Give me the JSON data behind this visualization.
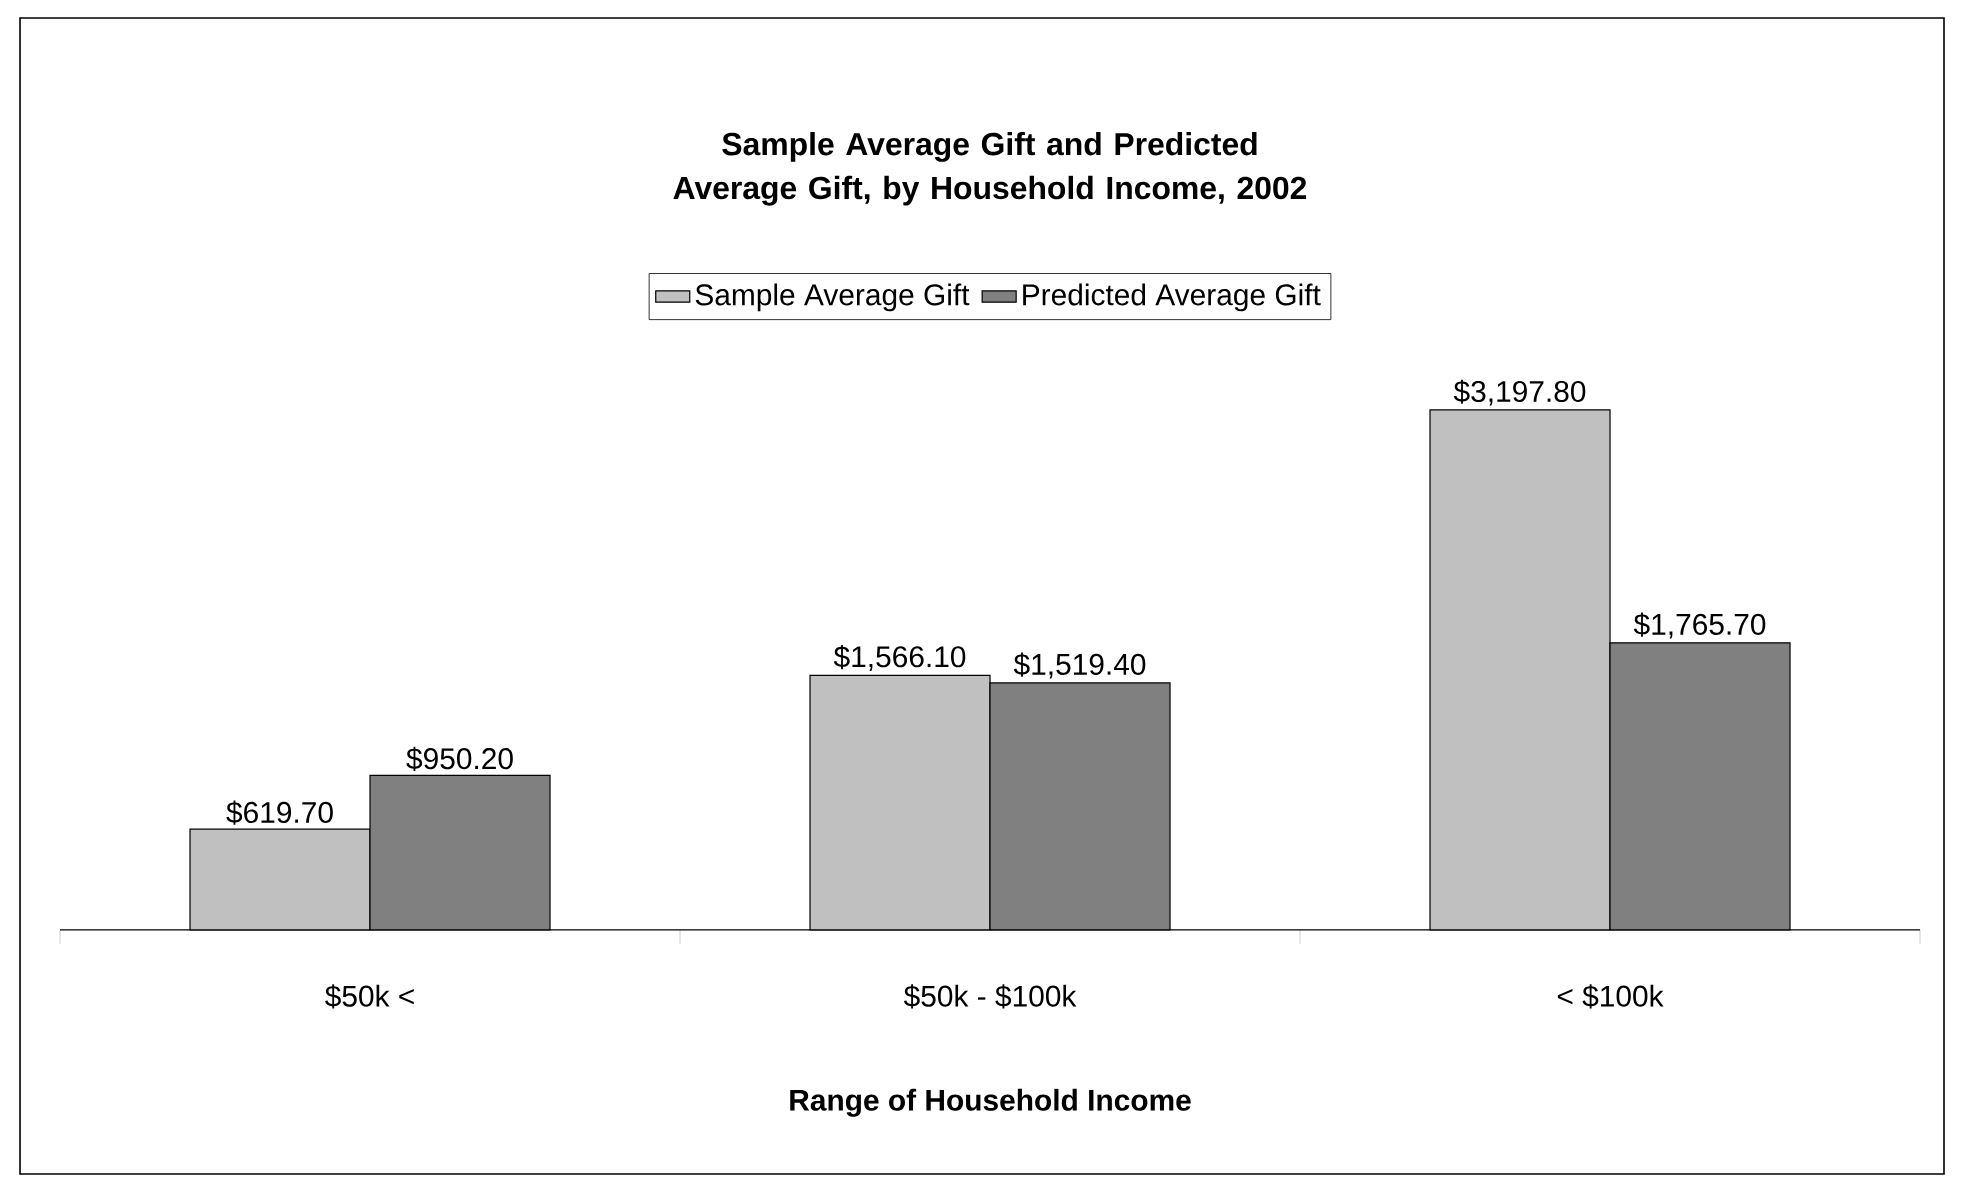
{
  "chart_data": {
    "type": "bar",
    "title": "Sample Average Gift and Predicted Average Gift, by Household Income, 2002",
    "xlabel": "Range of Household Income",
    "categories": [
      "$50k <",
      "$50k - $100k",
      "< $100k"
    ],
    "legend": "top",
    "series": [
      {
        "name": "Sample Average Gift",
        "color": "#c0c0c0",
        "values": [
          619.7,
          1566.1,
          3197.8
        ],
        "value_labels": [
          "$619.70",
          "$1,566.10",
          "$3,197.80"
        ]
      },
      {
        "name": "Predicted Average Gift",
        "color": "#808080",
        "values": [
          950.2,
          1519.4,
          1765.7
        ],
        "value_labels": [
          "$950.20",
          "$1,519.40",
          "$1,765.70"
        ]
      }
    ]
  }
}
